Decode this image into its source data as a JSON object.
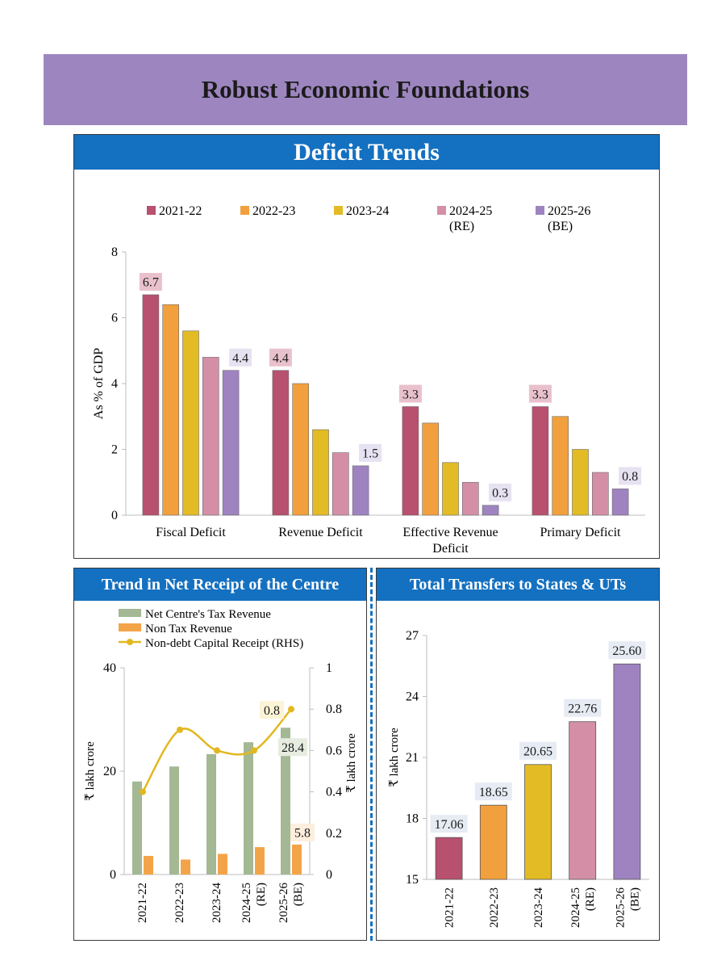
{
  "page_title": "Robust Economic Foundations",
  "chart_data": [
    {
      "id": "deficit",
      "type": "bar",
      "title": "Deficit Trends",
      "ylabel": "As % of GDP",
      "ylim": [
        0,
        8
      ],
      "yticks": [
        "0",
        "2",
        "4",
        "6",
        "8"
      ],
      "categories": [
        [
          "Fiscal Deficit"
        ],
        [
          "Revenue Deficit"
        ],
        [
          "Effective Revenue",
          "Deficit"
        ],
        [
          "Primary Deficit"
        ]
      ],
      "series": [
        {
          "name": [
            "2021-22"
          ],
          "color": "#b8506f",
          "values": [
            6.7,
            4.4,
            3.3,
            3.3
          ]
        },
        {
          "name": [
            "2022-23"
          ],
          "color": "#f2a03d",
          "values": [
            6.4,
            4.0,
            2.8,
            3.0
          ]
        },
        {
          "name": [
            "2023-24"
          ],
          "color": "#e3bb25",
          "values": [
            5.6,
            2.6,
            1.6,
            2.0
          ]
        },
        {
          "name": [
            "2024-25",
            "(RE)"
          ],
          "color": "#d48fa7",
          "values": [
            4.8,
            1.9,
            1.0,
            1.3
          ]
        },
        {
          "name": [
            "2025-26",
            "(BE)"
          ],
          "color": "#9e83c0",
          "values": [
            4.4,
            1.5,
            0.3,
            0.8
          ]
        }
      ],
      "data_labels": [
        {
          "series": 0,
          "cat": 0,
          "text": "6.7",
          "bg": "#e9c1cd"
        },
        {
          "series": 4,
          "cat": 0,
          "text": "4.4",
          "bg": "#e6e2f1"
        },
        {
          "series": 0,
          "cat": 1,
          "text": "4.4",
          "bg": "#e9c1cd"
        },
        {
          "series": 4,
          "cat": 1,
          "text": "1.5",
          "bg": "#e6e2f1"
        },
        {
          "series": 0,
          "cat": 2,
          "text": "3.3",
          "bg": "#e9c1cd"
        },
        {
          "series": 4,
          "cat": 2,
          "text": "0.3",
          "bg": "#e6e2f1"
        },
        {
          "series": 0,
          "cat": 3,
          "text": "3.3",
          "bg": "#e9c1cd"
        },
        {
          "series": 4,
          "cat": 3,
          "text": "0.8",
          "bg": "#e6e2f1"
        }
      ]
    },
    {
      "id": "receipts",
      "type": "bar+line",
      "title": "Trend in Net Receipt of the Centre",
      "ylabel": "₹ lakh crore",
      "y2label": "₹ lakh crore",
      "ylim": [
        0,
        40
      ],
      "y2lim": [
        0,
        1
      ],
      "yticks": [
        "0",
        "20",
        "40"
      ],
      "y2ticks": [
        "0",
        "0.2",
        "0.4",
        "0.6",
        "0.8",
        "1"
      ],
      "categories": [
        [
          "2021-22"
        ],
        [
          "2022-23"
        ],
        [
          "2023-24"
        ],
        [
          "2024-25",
          "(RE)"
        ],
        [
          "2025-26",
          "(BE)"
        ]
      ],
      "series": [
        {
          "name": "Net Centre's Tax Revenue",
          "type": "bar",
          "axis": "left",
          "color": "#a3b893",
          "values": [
            18.0,
            20.9,
            23.3,
            25.6,
            28.4
          ]
        },
        {
          "name": "Non Tax Revenue",
          "type": "bar",
          "axis": "left",
          "color": "#f4a448",
          "values": [
            3.6,
            2.9,
            4.0,
            5.3,
            5.8
          ]
        },
        {
          "name": "Non-debt Capital Receipt (RHS)",
          "type": "line",
          "axis": "right",
          "color": "#e2b821",
          "values": [
            0.4,
            0.7,
            0.6,
            0.6,
            0.8
          ]
        }
      ],
      "data_labels": [
        {
          "text": "0.8",
          "bg": "#fbf3d6"
        },
        {
          "text": "28.4",
          "bg": "#e6ecdf"
        },
        {
          "text": "5.8",
          "bg": "#fdeedd"
        }
      ]
    },
    {
      "id": "transfers",
      "type": "bar",
      "title": "Total Transfers to States & UTs",
      "ylabel": "₹ lakh crore",
      "ylim": [
        15,
        27
      ],
      "yticks": [
        "15",
        "18",
        "21",
        "24",
        "27"
      ],
      "categories": [
        [
          "2021-22"
        ],
        [
          "2022-23"
        ],
        [
          "2023-24"
        ],
        [
          "2024-25",
          "(RE)"
        ],
        [
          "2025-26",
          "(BE)"
        ]
      ],
      "colors": [
        "#b8506f",
        "#f2a03d",
        "#e3bb25",
        "#d48fa7",
        "#9e83c0"
      ],
      "values": [
        17.06,
        18.65,
        20.65,
        22.76,
        25.6
      ],
      "value_labels": [
        "17.06",
        "18.65",
        "20.65",
        "22.76",
        "25.60"
      ],
      "label_bg": "#e6ebf4"
    }
  ]
}
